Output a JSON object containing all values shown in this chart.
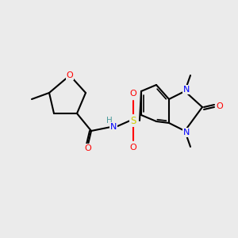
{
  "bg_color": "#ebebeb",
  "bond_color": "#000000",
  "atom_colors": {
    "O": "#ff0000",
    "N": "#0000ff",
    "S": "#cccc00",
    "H": "#4a9a9a",
    "C": "#000000"
  },
  "font_size": 7.5,
  "line_width": 1.5
}
